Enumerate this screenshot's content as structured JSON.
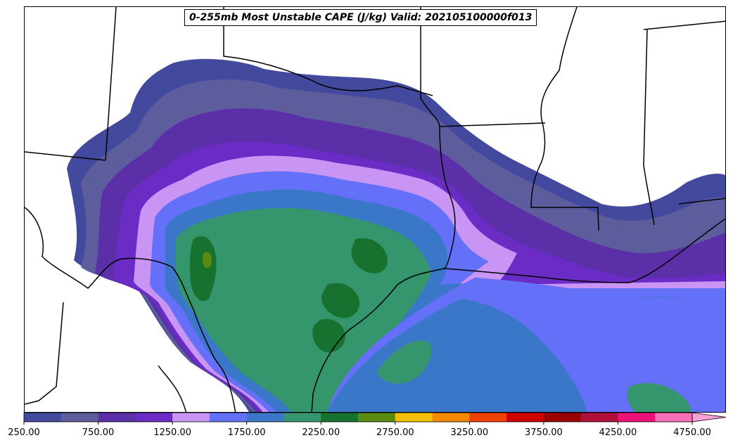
{
  "title": "0-255mb Most Unstable CAPE (J/kg) Valid: 202105100000f013",
  "colorbar": {
    "colors": [
      "#434a9d",
      "#5d5d9e",
      "#5a2fa8",
      "#6a2cc5",
      "#c895f5",
      "#6470f7",
      "#3a77c9",
      "#35956d",
      "#17712f",
      "#5a8a12",
      "#f5c000",
      "#f58a00",
      "#ee4000",
      "#d10000",
      "#9a0000",
      "#b0103a",
      "#f0107a",
      "#f970b8",
      "#f7a0d8"
    ],
    "ticks": [
      "250.00",
      "750.00",
      "1250.00",
      "1750.00",
      "2250.00",
      "2750.00",
      "3250.00",
      "3750.00",
      "4250.00",
      "4750.00"
    ]
  }
}
